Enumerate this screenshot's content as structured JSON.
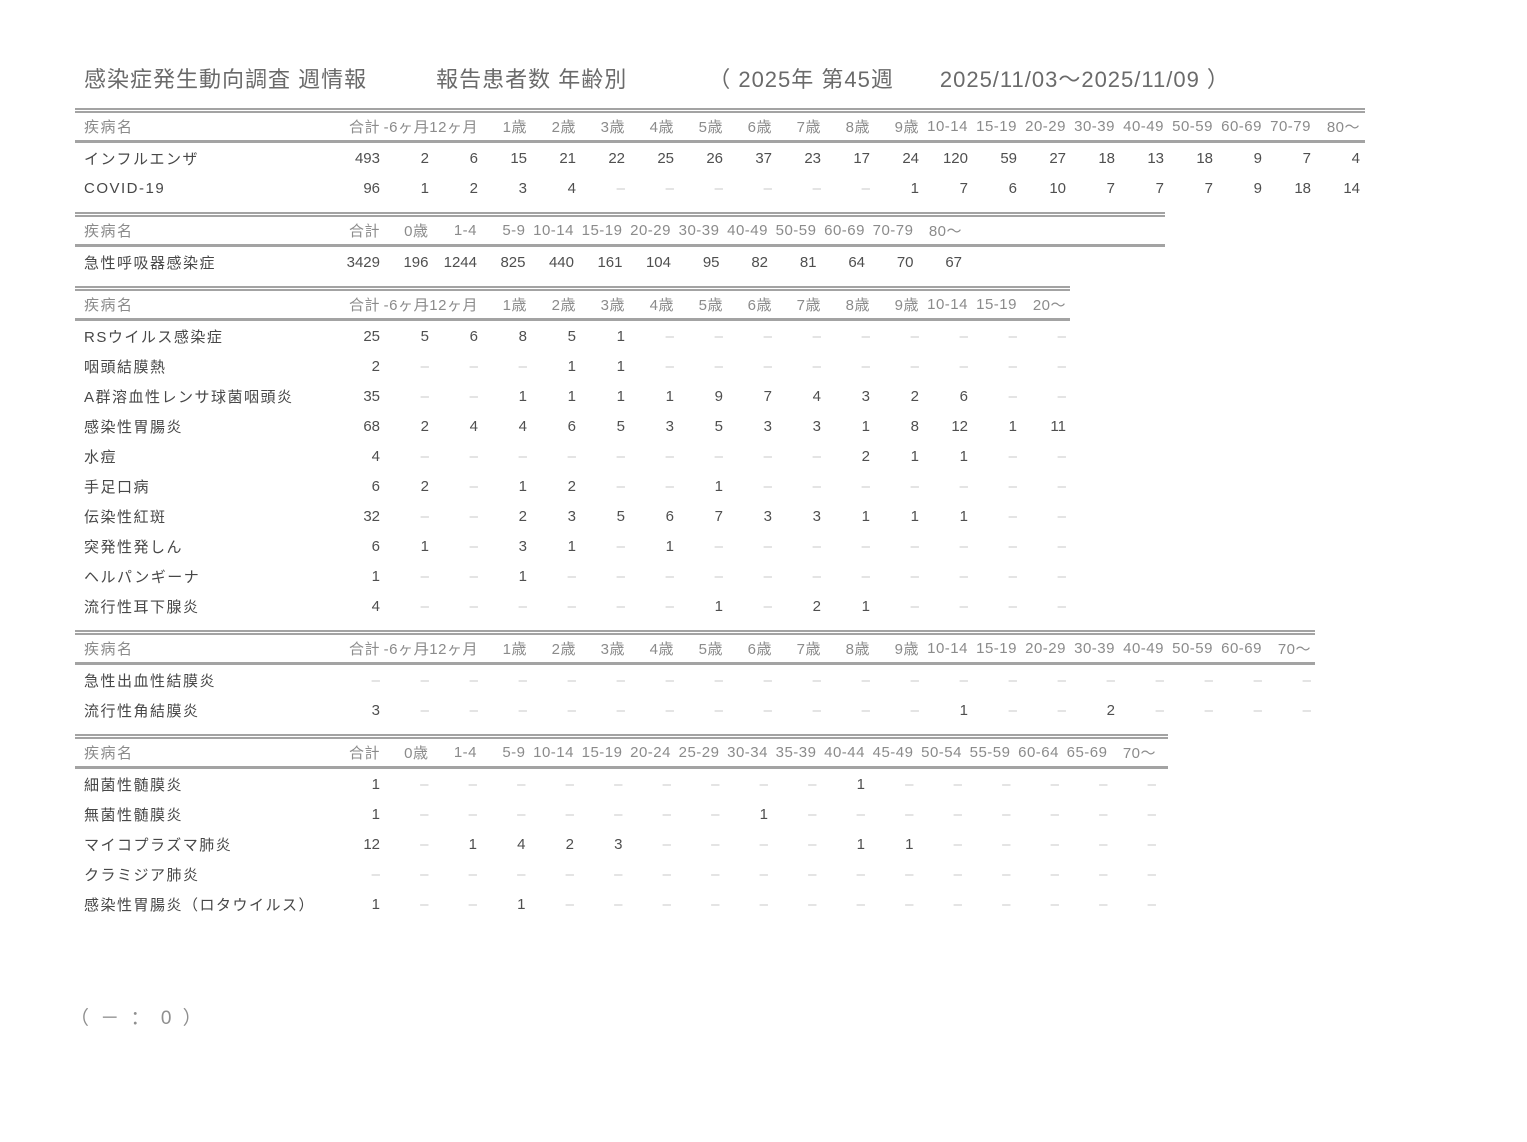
{
  "title": "感染症発生動向調査 週情報　　　報告患者数 年齢別　　　　（ 2025年 第45週　　2025/11/03～2025/11/09 ）",
  "footnote": "（ － ： 0 ）",
  "legend": {
    "dash_means": "0"
  },
  "colors": {
    "rule": "#a3a3a3",
    "header_text": "#8b8b8b",
    "body_text": "#4f4f4f",
    "dash": "#c9c9c9",
    "title_text": "#6a6a6a",
    "background": "#ffffff"
  },
  "tables": [
    {
      "name_header": "疾病名",
      "columns": [
        "合計",
        "-6ヶ月",
        "-12ヶ月",
        "1歳",
        "2歳",
        "3歳",
        "4歳",
        "5歳",
        "6歳",
        "7歳",
        "8歳",
        "9歳",
        "10-14",
        "15-19",
        "20-29",
        "30-39",
        "40-49",
        "50-59",
        "60-69",
        "70-79",
        "80～"
      ],
      "rows": [
        {
          "label": "インフルエンザ",
          "values": [
            "493",
            "2",
            "6",
            "15",
            "21",
            "22",
            "25",
            "26",
            "37",
            "23",
            "17",
            "24",
            "120",
            "59",
            "27",
            "18",
            "13",
            "18",
            "9",
            "7",
            "4"
          ]
        },
        {
          "label": "COVID-19",
          "values": [
            "96",
            "1",
            "2",
            "3",
            "4",
            "–",
            "–",
            "–",
            "–",
            "–",
            "–",
            "1",
            "7",
            "6",
            "10",
            "7",
            "7",
            "7",
            "9",
            "18",
            "14"
          ]
        }
      ]
    },
    {
      "name_header": "疾病名",
      "columns": [
        "合計",
        "0歳",
        "1-4",
        "5-9",
        "10-14",
        "15-19",
        "20-29",
        "30-39",
        "40-49",
        "50-59",
        "60-69",
        "70-79",
        "80～"
      ],
      "rows": [
        {
          "label": "急性呼吸器感染症",
          "values": [
            "3429",
            "196",
            "1244",
            "825",
            "440",
            "161",
            "104",
            "95",
            "82",
            "81",
            "64",
            "70",
            "67"
          ]
        }
      ]
    },
    {
      "name_header": "疾病名",
      "columns": [
        "合計",
        "-6ヶ月",
        "-12ヶ月",
        "1歳",
        "2歳",
        "3歳",
        "4歳",
        "5歳",
        "6歳",
        "7歳",
        "8歳",
        "9歳",
        "10-14",
        "15-19",
        "20～"
      ],
      "rows": [
        {
          "label": "RSウイルス感染症",
          "values": [
            "25",
            "5",
            "6",
            "8",
            "5",
            "1",
            "–",
            "–",
            "–",
            "–",
            "–",
            "–",
            "–",
            "–",
            "–"
          ]
        },
        {
          "label": "咽頭結膜熱",
          "values": [
            "2",
            "–",
            "–",
            "–",
            "1",
            "1",
            "–",
            "–",
            "–",
            "–",
            "–",
            "–",
            "–",
            "–",
            "–"
          ]
        },
        {
          "label": "A群溶血性レンサ球菌咽頭炎",
          "values": [
            "35",
            "–",
            "–",
            "1",
            "1",
            "1",
            "1",
            "9",
            "7",
            "4",
            "3",
            "2",
            "6",
            "–",
            "–"
          ]
        },
        {
          "label": "感染性胃腸炎",
          "values": [
            "68",
            "2",
            "4",
            "4",
            "6",
            "5",
            "3",
            "5",
            "3",
            "3",
            "1",
            "8",
            "12",
            "1",
            "11"
          ]
        },
        {
          "label": "水痘",
          "values": [
            "4",
            "–",
            "–",
            "–",
            "–",
            "–",
            "–",
            "–",
            "–",
            "–",
            "2",
            "1",
            "1",
            "–",
            "–"
          ]
        },
        {
          "label": "手足口病",
          "values": [
            "6",
            "2",
            "–",
            "1",
            "2",
            "–",
            "–",
            "1",
            "–",
            "–",
            "–",
            "–",
            "–",
            "–",
            "–"
          ]
        },
        {
          "label": "伝染性紅斑",
          "values": [
            "32",
            "–",
            "–",
            "2",
            "3",
            "5",
            "6",
            "7",
            "3",
            "3",
            "1",
            "1",
            "1",
            "–",
            "–"
          ]
        },
        {
          "label": "突発性発しん",
          "values": [
            "6",
            "1",
            "–",
            "3",
            "1",
            "–",
            "1",
            "–",
            "–",
            "–",
            "–",
            "–",
            "–",
            "–",
            "–"
          ]
        },
        {
          "label": "ヘルパンギーナ",
          "values": [
            "1",
            "–",
            "–",
            "1",
            "–",
            "–",
            "–",
            "–",
            "–",
            "–",
            "–",
            "–",
            "–",
            "–",
            "–"
          ]
        },
        {
          "label": "流行性耳下腺炎",
          "values": [
            "4",
            "–",
            "–",
            "–",
            "–",
            "–",
            "–",
            "1",
            "–",
            "2",
            "1",
            "–",
            "–",
            "–",
            "–"
          ]
        }
      ]
    },
    {
      "name_header": "疾病名",
      "columns": [
        "合計",
        "-6ヶ月",
        "-12ヶ月",
        "1歳",
        "2歳",
        "3歳",
        "4歳",
        "5歳",
        "6歳",
        "7歳",
        "8歳",
        "9歳",
        "10-14",
        "15-19",
        "20-29",
        "30-39",
        "40-49",
        "50-59",
        "60-69",
        "70～"
      ],
      "rows": [
        {
          "label": "急性出血性結膜炎",
          "values": [
            "–",
            "–",
            "–",
            "–",
            "–",
            "–",
            "–",
            "–",
            "–",
            "–",
            "–",
            "–",
            "–",
            "–",
            "–",
            "–",
            "–",
            "–",
            "–",
            "–"
          ]
        },
        {
          "label": "流行性角結膜炎",
          "values": [
            "3",
            "–",
            "–",
            "–",
            "–",
            "–",
            "–",
            "–",
            "–",
            "–",
            "–",
            "–",
            "1",
            "–",
            "–",
            "2",
            "–",
            "–",
            "–",
            "–"
          ]
        }
      ]
    },
    {
      "name_header": "疾病名",
      "columns": [
        "合計",
        "0歳",
        "1-4",
        "5-9",
        "10-14",
        "15-19",
        "20-24",
        "25-29",
        "30-34",
        "35-39",
        "40-44",
        "45-49",
        "50-54",
        "55-59",
        "60-64",
        "65-69",
        "70～"
      ],
      "rows": [
        {
          "label": "細菌性髄膜炎",
          "values": [
            "1",
            "–",
            "–",
            "–",
            "–",
            "–",
            "–",
            "–",
            "–",
            "–",
            "1",
            "–",
            "–",
            "–",
            "–",
            "–",
            "–"
          ]
        },
        {
          "label": "無菌性髄膜炎",
          "values": [
            "1",
            "–",
            "–",
            "–",
            "–",
            "–",
            "–",
            "–",
            "1",
            "–",
            "–",
            "–",
            "–",
            "–",
            "–",
            "–",
            "–"
          ]
        },
        {
          "label": "マイコプラズマ肺炎",
          "values": [
            "12",
            "–",
            "1",
            "4",
            "2",
            "3",
            "–",
            "–",
            "–",
            "–",
            "1",
            "1",
            "–",
            "–",
            "–",
            "–",
            "–"
          ]
        },
        {
          "label": "クラミジア肺炎",
          "values": [
            "–",
            "–",
            "–",
            "–",
            "–",
            "–",
            "–",
            "–",
            "–",
            "–",
            "–",
            "–",
            "–",
            "–",
            "–",
            "–",
            "–"
          ]
        },
        {
          "label": "感染性胃腸炎（ロタウイルス）",
          "values": [
            "1",
            "–",
            "–",
            "1",
            "–",
            "–",
            "–",
            "–",
            "–",
            "–",
            "–",
            "–",
            "–",
            "–",
            "–",
            "–",
            "–"
          ]
        }
      ]
    }
  ]
}
